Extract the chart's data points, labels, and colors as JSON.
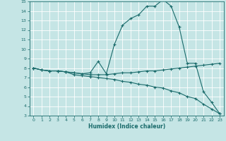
{
  "xlabel": "Humidex (Indice chaleur)",
  "xlim": [
    -0.5,
    23.5
  ],
  "ylim": [
    3,
    15
  ],
  "yticks": [
    3,
    4,
    5,
    6,
    7,
    8,
    9,
    10,
    11,
    12,
    13,
    14,
    15
  ],
  "xticks": [
    0,
    1,
    2,
    3,
    4,
    5,
    6,
    7,
    8,
    9,
    10,
    11,
    12,
    13,
    14,
    15,
    16,
    17,
    18,
    19,
    20,
    21,
    22,
    23
  ],
  "bg_color": "#c5e5e5",
  "line_color": "#1a6b6b",
  "grid_color": "#ffffff",
  "line1_x": [
    0,
    1,
    2,
    3,
    4,
    5,
    6,
    7,
    8,
    9,
    10,
    11,
    12,
    13,
    14,
    15,
    16,
    17,
    18,
    19,
    20,
    21,
    22,
    23
  ],
  "line1_y": [
    8.0,
    7.8,
    7.7,
    7.7,
    7.6,
    7.5,
    7.4,
    7.5,
    8.7,
    7.4,
    10.5,
    12.5,
    13.2,
    13.6,
    14.5,
    14.5,
    15.2,
    14.5,
    12.3,
    8.5,
    8.5,
    5.5,
    4.4,
    3.2
  ],
  "line2_x": [
    0,
    1,
    2,
    3,
    4,
    5,
    6,
    7,
    8,
    9,
    10,
    11,
    12,
    13,
    14,
    15,
    16,
    17,
    18,
    19,
    20,
    21,
    22,
    23
  ],
  "line2_y": [
    8.0,
    7.8,
    7.7,
    7.7,
    7.6,
    7.5,
    7.4,
    7.3,
    7.3,
    7.3,
    7.4,
    7.5,
    7.5,
    7.6,
    7.7,
    7.7,
    7.8,
    7.9,
    8.0,
    8.1,
    8.2,
    8.3,
    8.4,
    8.5
  ],
  "line3_x": [
    0,
    1,
    2,
    3,
    4,
    5,
    6,
    7,
    8,
    9,
    10,
    11,
    12,
    13,
    14,
    15,
    16,
    17,
    18,
    19,
    20,
    21,
    22,
    23
  ],
  "line3_y": [
    8.0,
    7.8,
    7.7,
    7.7,
    7.6,
    7.3,
    7.2,
    7.1,
    7.0,
    6.9,
    6.8,
    6.6,
    6.5,
    6.3,
    6.2,
    6.0,
    5.9,
    5.6,
    5.4,
    5.0,
    4.8,
    4.2,
    3.7,
    3.2
  ],
  "xlabel_fontsize": 5.5,
  "tick_fontsize": 4.5,
  "linewidth": 0.8,
  "markersize": 3,
  "markeredgewidth": 0.8
}
